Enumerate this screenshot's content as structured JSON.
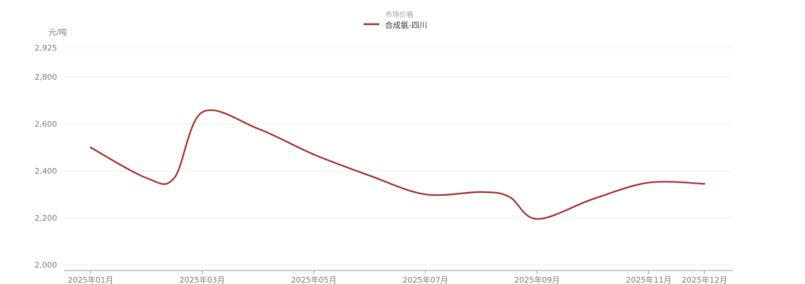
{
  "chart_data": {
    "type": "line",
    "title": "",
    "xlabel": "",
    "ylabel": "元/吨",
    "legend": {
      "group_title": "市场价格",
      "placement": "top-center"
    },
    "x_tick_labels": [
      "2025年01月",
      "2025年03月",
      "2025年05月",
      "2025年07月",
      "2025年09月",
      "2025年11月",
      "2025年12月"
    ],
    "x_tick_positions": [
      0,
      2,
      4,
      6,
      8,
      10,
      11
    ],
    "y_ticks": [
      2000,
      2200,
      2400,
      2600,
      2800,
      2925
    ],
    "ylim": [
      2000,
      2925
    ],
    "xlim": [
      0,
      11
    ],
    "grid": true,
    "series": [
      {
        "name": "合成氨-四川",
        "color": "#a52a2a",
        "x": [
          0,
          1,
          1.5,
          2,
          3,
          4,
          5,
          6,
          7,
          7.5,
          8,
          9,
          10,
          11
        ],
        "values": [
          2500,
          2370,
          2370,
          2650,
          2580,
          2470,
          2380,
          2300,
          2310,
          2290,
          2195,
          2280,
          2350,
          2345
        ]
      }
    ]
  }
}
